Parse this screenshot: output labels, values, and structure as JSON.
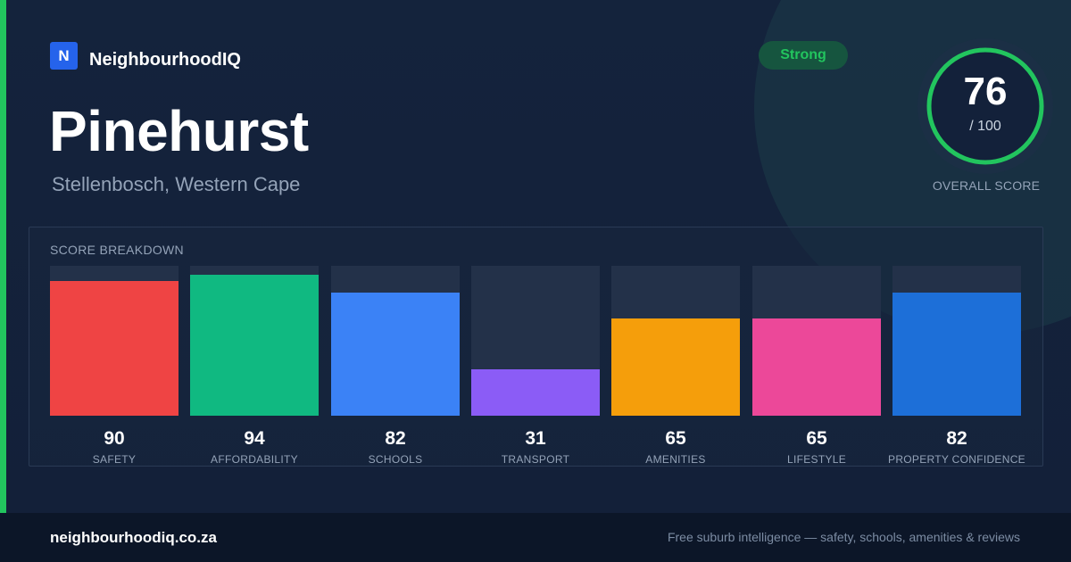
{
  "brand": {
    "logo_letter": "N",
    "name": "NeighbourhoodIQ"
  },
  "suburb": {
    "name": "Pinehurst",
    "location": "Stellenbosch, Western Cape"
  },
  "badge": {
    "label": "Strong",
    "color": "#22c55e"
  },
  "overall": {
    "score": "76",
    "max_label": "/ 100",
    "label": "OVERALL SCORE",
    "score_value": 76,
    "max_value": 100,
    "ring_color": "#22c55e"
  },
  "breakdown_title": "SCORE BREAKDOWN",
  "chart_data": {
    "type": "bar",
    "title": "SCORE BREAKDOWN",
    "categories": [
      "SAFETY",
      "AFFORDABILITY",
      "SCHOOLS",
      "TRANSPORT",
      "AMENITIES",
      "LIFESTYLE",
      "PROPERTY CONFIDENCE"
    ],
    "values": [
      90,
      94,
      82,
      31,
      65,
      65,
      82
    ],
    "colors": [
      "#ef4444",
      "#10b981",
      "#3b82f6",
      "#8b5cf6",
      "#f59e0b",
      "#ec4899",
      "#1d6fd8"
    ],
    "ylim": [
      0,
      100
    ],
    "grid": false
  },
  "footer": {
    "url": "neighbourhoodiq.co.za",
    "tagline": "Free suburb intelligence — safety, schools, amenities & reviews"
  }
}
